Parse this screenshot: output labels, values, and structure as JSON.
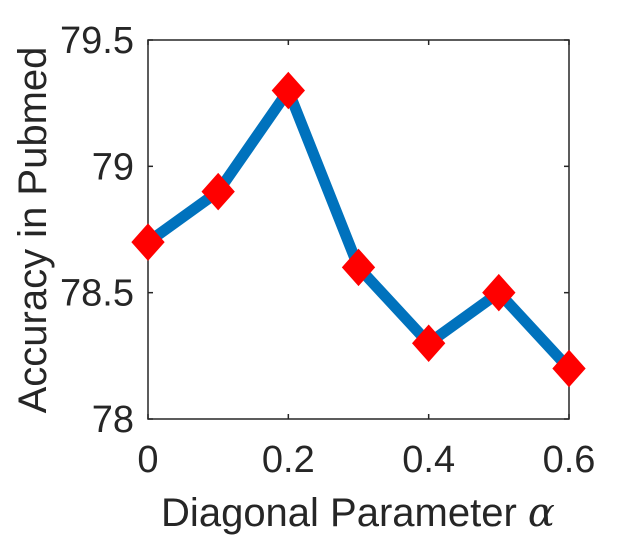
{
  "chart_data": {
    "type": "line",
    "x": [
      0,
      0.1,
      0.2,
      0.3,
      0.4,
      0.5,
      0.6
    ],
    "series": [
      {
        "values": [
          78.7,
          78.9,
          79.3,
          78.6,
          78.3,
          78.5,
          78.2
        ]
      }
    ],
    "xlim": [
      0,
      0.6
    ],
    "ylim": [
      78,
      79.5
    ],
    "x_ticks": [
      "0",
      "0.2",
      "0.4",
      "0.6"
    ],
    "y_ticks": [
      "78",
      "78.5",
      "79",
      "79.5"
    ],
    "xlabel": "Diagonal Parameter",
    "xlabel_symbol": "α",
    "ylabel": "Accuracy in Pubmed",
    "grid": false,
    "line_color": "#0072BD",
    "marker_color": "#FF0000",
    "marker": "diamond"
  }
}
